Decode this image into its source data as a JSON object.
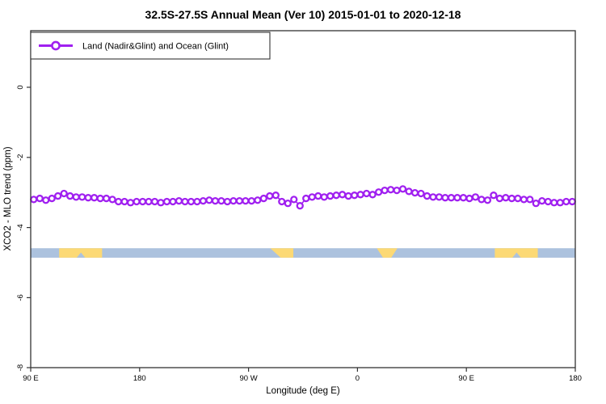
{
  "title": "32.5S-27.5S Annual Mean (Ver 10)   2015-01-01 to 2020-12-18",
  "legend": {
    "series_marker": "open-circle-on-line-icon",
    "series_label": "Land (Nadir&Glint) and Ocean (Glint)"
  },
  "axes": {
    "x_label": "Longitude (deg E)",
    "y_label": "XCO2 - MLO trend (ppm)",
    "x_range_plot_deg": [
      90,
      540
    ],
    "y_range": [
      -8.0,
      1.6
    ],
    "x_ticks": [
      {
        "pos": 90,
        "label": "90 E"
      },
      {
        "pos": 180,
        "label": "180"
      },
      {
        "pos": 270,
        "label": "90 W"
      },
      {
        "pos": 360,
        "label": "0"
      },
      {
        "pos": 450,
        "label": "90 E"
      },
      {
        "pos": 540,
        "label": "180"
      }
    ],
    "y_ticks": [
      {
        "pos": 0,
        "label": "0"
      },
      {
        "pos": -2,
        "label": "-2"
      },
      {
        "pos": -4,
        "label": "-4"
      },
      {
        "pos": -6,
        "label": "-6"
      },
      {
        "pos": -8,
        "label": "-8"
      }
    ]
  },
  "colors": {
    "series": "#A020F0",
    "ocean_band": "#ACC2DE",
    "land_band": "#FCD975",
    "frame": "#333333"
  },
  "chart_data": {
    "type": "line",
    "title": "32.5S-27.5S Annual Mean (Ver 10)   2015-01-01 to 2020-12-18",
    "xlabel": "Longitude (deg E)",
    "ylabel": "XCO2 - MLO trend (ppm)",
    "xlim_plot_deg": [
      90,
      540
    ],
    "ylim": [
      -8.0,
      1.6
    ],
    "grid": false,
    "legend_position": "top-left",
    "series": [
      {
        "name": "Land (Nadir&Glint) and Ocean (Glint)",
        "marker": "open-circle",
        "color": "#A020F0",
        "x_start_deg": 92.5,
        "x_step_deg": 5,
        "values": [
          -3.2,
          -3.17,
          -3.22,
          -3.17,
          -3.1,
          -3.03,
          -3.1,
          -3.13,
          -3.13,
          -3.15,
          -3.15,
          -3.17,
          -3.17,
          -3.2,
          -3.26,
          -3.26,
          -3.29,
          -3.26,
          -3.26,
          -3.26,
          -3.26,
          -3.29,
          -3.26,
          -3.26,
          -3.24,
          -3.26,
          -3.26,
          -3.26,
          -3.24,
          -3.22,
          -3.24,
          -3.24,
          -3.26,
          -3.24,
          -3.24,
          -3.24,
          -3.24,
          -3.22,
          -3.17,
          -3.1,
          -3.08,
          -3.26,
          -3.31,
          -3.2,
          -3.38,
          -3.17,
          -3.13,
          -3.1,
          -3.13,
          -3.1,
          -3.08,
          -3.06,
          -3.1,
          -3.08,
          -3.06,
          -3.03,
          -3.06,
          -2.99,
          -2.94,
          -2.92,
          -2.94,
          -2.9,
          -2.97,
          -3.01,
          -3.03,
          -3.1,
          -3.13,
          -3.13,
          -3.15,
          -3.15,
          -3.15,
          -3.15,
          -3.17,
          -3.13,
          -3.2,
          -3.22,
          -3.08,
          -3.17,
          -3.15,
          -3.17,
          -3.17,
          -3.2,
          -3.2,
          -3.31,
          -3.24,
          -3.26,
          -3.29,
          -3.29,
          -3.26,
          -3.26
        ]
      }
    ],
    "land_ocean_band": {
      "y_top": -4.59,
      "y_bottom": -4.86,
      "ocean_color": "#ACC2DE",
      "land_color": "#FCD975",
      "ocean_extent_deg": [
        90,
        540
      ],
      "land_segments": [
        {
          "from": 113.5,
          "to": 149,
          "region": "Australia",
          "notch": [
            128,
            135
          ]
        },
        {
          "from": 288,
          "to": 307,
          "region": "South America",
          "taper": "left"
        },
        {
          "from": 376,
          "to": 393,
          "region": "Southern Africa",
          "taper": "both"
        },
        {
          "from": 473.5,
          "to": 509,
          "region": "Australia",
          "notch": [
            488,
            495
          ]
        }
      ]
    }
  }
}
